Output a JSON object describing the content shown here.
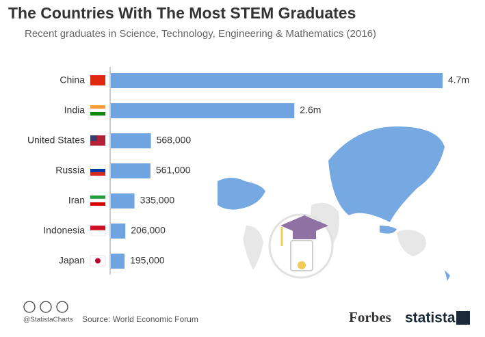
{
  "chart_data": {
    "type": "bar",
    "orientation": "horizontal",
    "title": "The Countries With The Most STEM Graduates",
    "subtitle": "Recent graduates in Science, Technology, Engineering & Mathematics (2016)",
    "categories": [
      "China",
      "India",
      "United States",
      "Russia",
      "Iran",
      "Indonesia",
      "Japan"
    ],
    "values": [
      4700000,
      2600000,
      568000,
      561000,
      335000,
      206000,
      195000
    ],
    "value_labels": [
      "4.7m",
      "2.6m",
      "568,000",
      "561,000",
      "335,000",
      "206,000",
      "195,000"
    ],
    "color": "#6fa4e0",
    "source": "Source: World Economic Forum",
    "handle": "@StatistaCharts",
    "brand_left": "Forbes",
    "brand_right": "statista"
  }
}
